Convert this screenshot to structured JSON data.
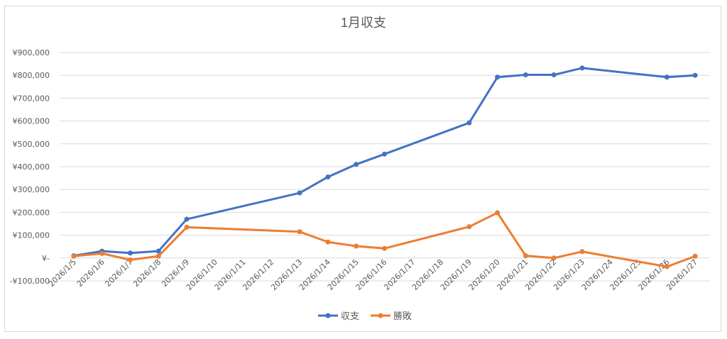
{
  "chart_data": {
    "type": "line",
    "title": "1月収支",
    "xlabel": "",
    "ylabel": "",
    "ylim": [
      -100000,
      900000
    ],
    "y_ticks": [
      -100000,
      0,
      100000,
      200000,
      300000,
      400000,
      500000,
      600000,
      700000,
      800000,
      900000
    ],
    "y_tick_labels": [
      "-¥100,000",
      "¥-",
      "¥100,000",
      "¥200,000",
      "¥300,000",
      "¥400,000",
      "¥500,000",
      "¥600,000",
      "¥700,000",
      "¥800,000",
      "¥900,000"
    ],
    "categories": [
      "2026/1/5",
      "2026/1/6",
      "2026/1/7",
      "2026/1/8",
      "2026/1/9",
      "2026/1/10",
      "2026/1/11",
      "2026/1/12",
      "2026/1/13",
      "2026/1/14",
      "2026/1/15",
      "2026/1/16",
      "2026/1/17",
      "2026/1/18",
      "2026/1/19",
      "2026/1/20",
      "2026/1/21",
      "2026/1/22",
      "2026/1/23",
      "2026/1/24",
      "2026/1/25",
      "2026/1/26",
      "2026/1/27"
    ],
    "series": [
      {
        "name": "収支",
        "color": "#4472c4",
        "values": [
          10000,
          30000,
          22000,
          30000,
          170000,
          null,
          null,
          null,
          285000,
          355000,
          410000,
          455000,
          null,
          null,
          592000,
          792000,
          802000,
          802000,
          832000,
          null,
          null,
          792000,
          800000
        ]
      },
      {
        "name": "勝敗",
        "color": "#ed7d31",
        "values": [
          8000,
          20000,
          -8000,
          8000,
          135000,
          null,
          null,
          null,
          115000,
          70000,
          52000,
          42000,
          null,
          null,
          137000,
          198000,
          10000,
          0,
          28000,
          null,
          null,
          -38000,
          8000
        ]
      }
    ],
    "grid": true,
    "legend": "bottom"
  }
}
